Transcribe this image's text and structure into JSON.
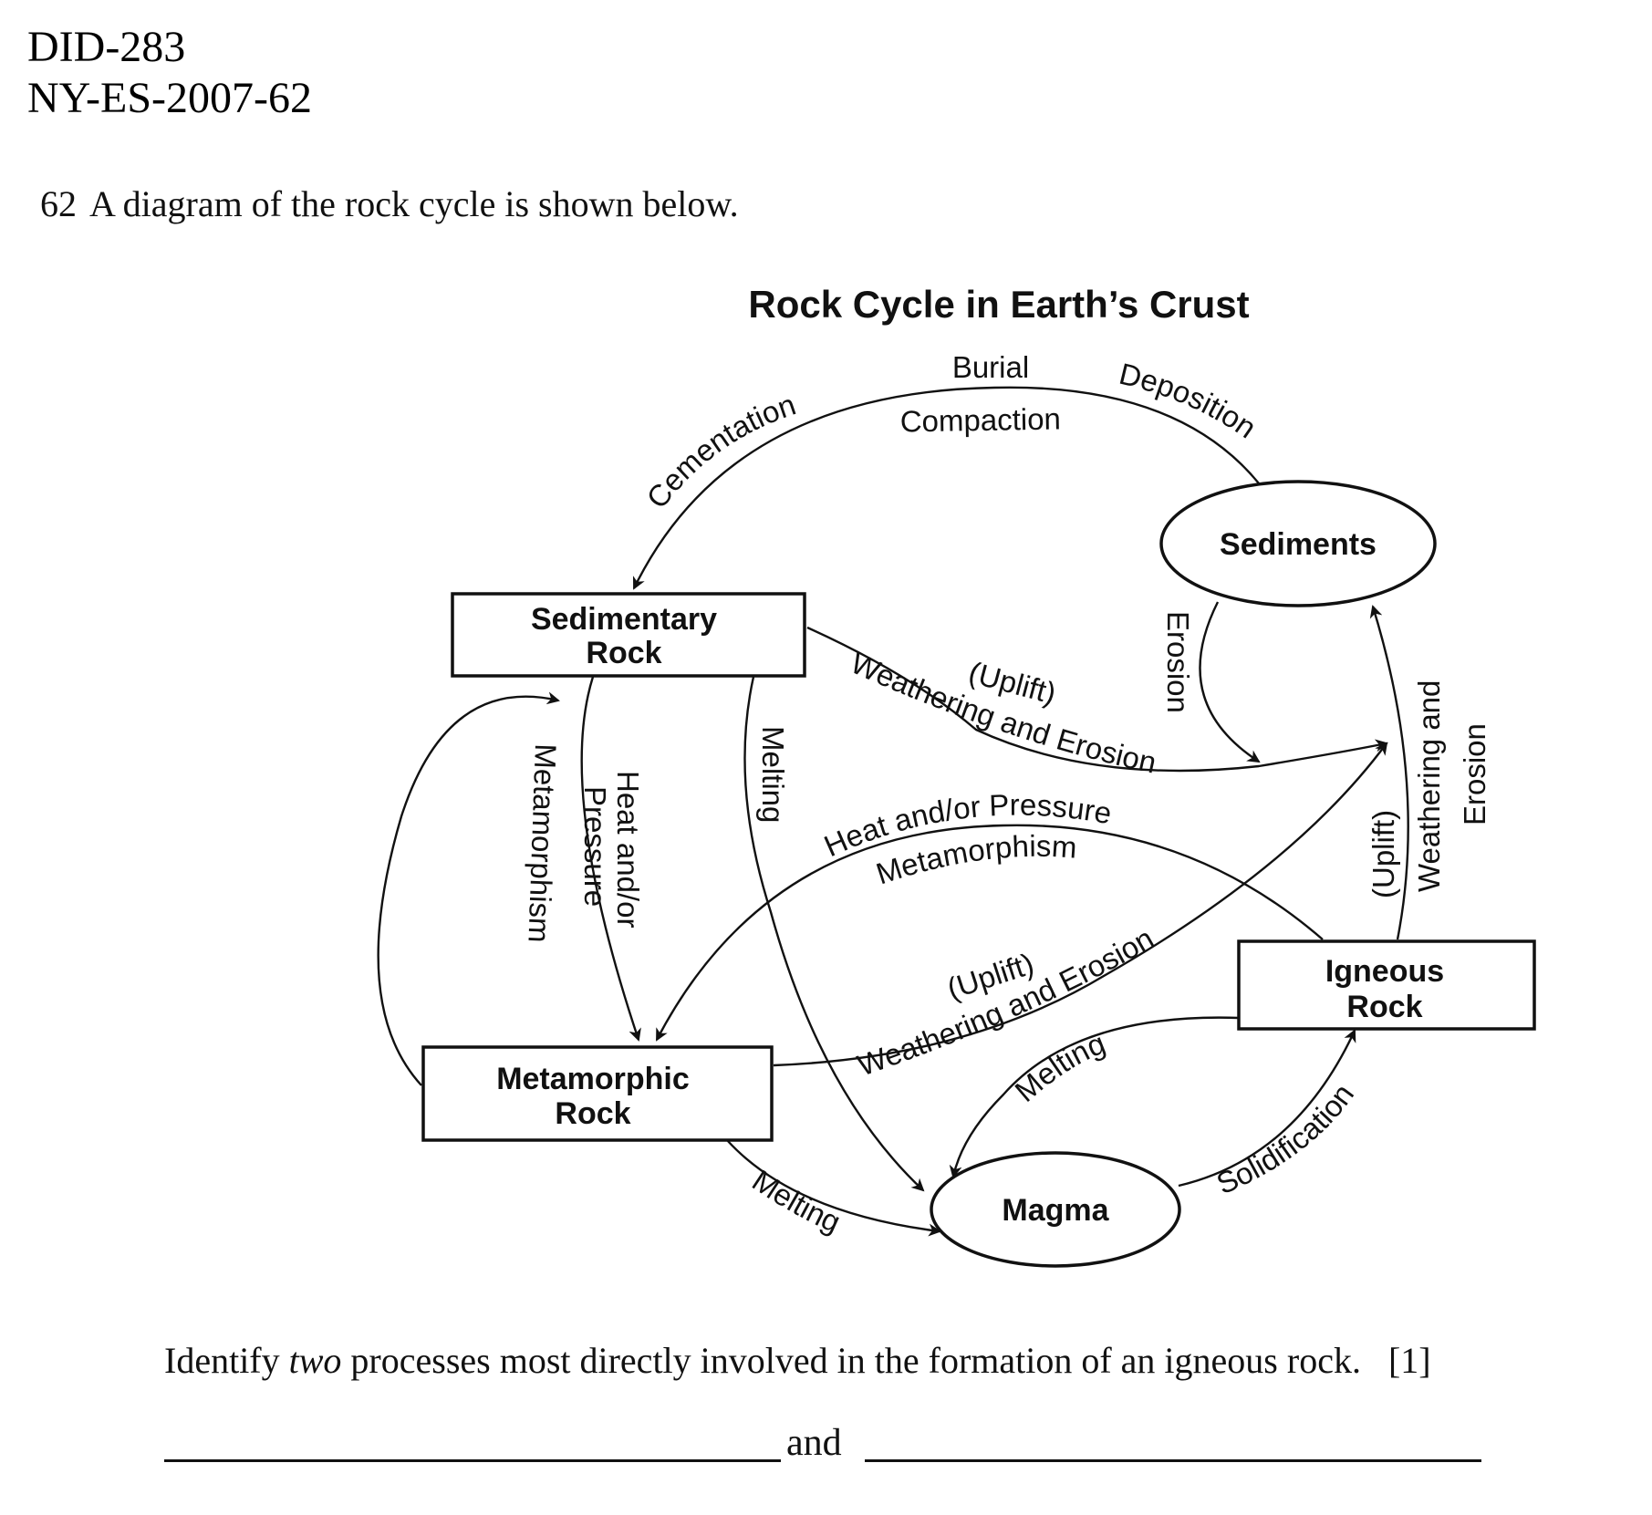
{
  "header": {
    "id": "DID-283",
    "code": "NY-ES-2007-62"
  },
  "question": {
    "number": "62",
    "text": "A diagram of the rock cycle is shown below."
  },
  "diagram": {
    "title": "Rock Cycle in Earth’s Crust",
    "nodes": {
      "sediments": "Sediments",
      "sedimentary_1": "Sedimentary",
      "sedimentary_2": "Rock",
      "metamorphic_1": "Metamorphic",
      "metamorphic_2": "Rock",
      "igneous_1": "Igneous",
      "igneous_2": "Rock",
      "magma": "Magma"
    },
    "labels": {
      "burial": "Burial",
      "compaction": "Compaction",
      "cementation": "Cementation",
      "deposition": "Deposition",
      "erosion": "Erosion",
      "uplift_1": "(Uplift)",
      "weathering_erosion_1": "Weathering and Erosion",
      "heat_pressure_upper": "Heat and/or Pressure",
      "metamorphism_upper": "Metamorphism",
      "metamorphism_left": "Metamorphism",
      "heat_and_or": "Heat and/or",
      "pressure": "Pressure",
      "melting_sed": "Melting",
      "uplift_2": "(Uplift)",
      "weathering_erosion_2": "Weathering and Erosion",
      "melting_ign": "Melting",
      "melting_met": "Melting",
      "solidification": "Solidification",
      "uplift_3": "(Uplift)",
      "weathering_and": "Weathering and",
      "erosion_right": "Erosion"
    }
  },
  "prompt": {
    "pre": "Identify",
    "emph": "two",
    "post": "processes most directly involved in the formation of an igneous rock.",
    "points": "[1]"
  },
  "answer": {
    "and": "and"
  }
}
